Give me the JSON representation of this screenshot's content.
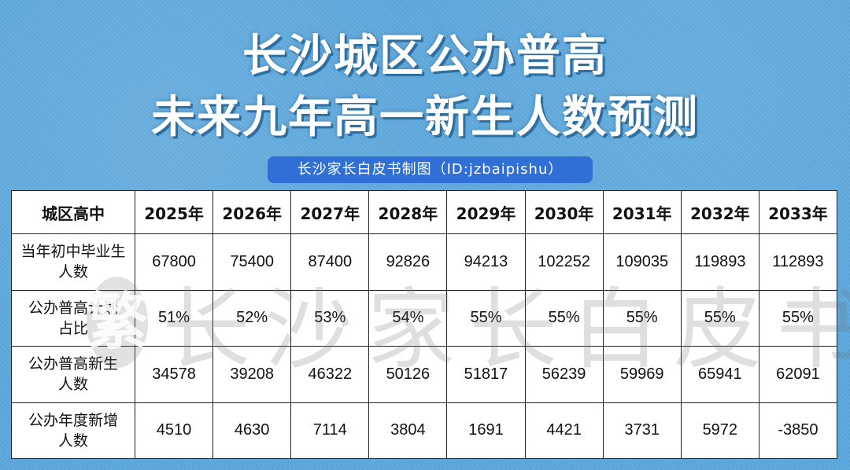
{
  "title": {
    "line1": "长沙城区公办普高",
    "line2": "未来九年高一新生人数预测"
  },
  "credit": "长沙家长白皮书制图（ID:jzbaipishu）",
  "table": {
    "header": [
      "城区高中",
      "2025年",
      "2026年",
      "2027年",
      "2028年",
      "2029年",
      "2030年",
      "2031年",
      "2032年",
      "2033年"
    ],
    "rows": [
      {
        "label": [
          "当年初中毕业生",
          "人数"
        ],
        "cells": [
          "67800",
          "75400",
          "87400",
          "92826",
          "94213",
          "102252",
          "109035",
          "119893",
          "112893"
        ]
      },
      {
        "label": [
          "公办普高计划",
          "占比"
        ],
        "cells": [
          "51%",
          "52%",
          "53%",
          "54%",
          "55%",
          "55%",
          "55%",
          "55%",
          "55%"
        ]
      },
      {
        "label": [
          "公办普高新生",
          "人数"
        ],
        "cells": [
          "34578",
          "39208",
          "46322",
          "50126",
          "51817",
          "56239",
          "59969",
          "65941",
          "62091"
        ]
      },
      {
        "label": [
          "公办年度新增",
          "人数"
        ],
        "cells": [
          "4510",
          "4630",
          "7114",
          "3804",
          "1691",
          "4421",
          "3731",
          "5972",
          "-3850"
        ]
      }
    ]
  },
  "watermark": {
    "badge": "繁",
    "text": "长沙家长白皮书"
  },
  "colors": {
    "background": "#5aa6dc",
    "credit_bg": "#2f6fd6"
  }
}
